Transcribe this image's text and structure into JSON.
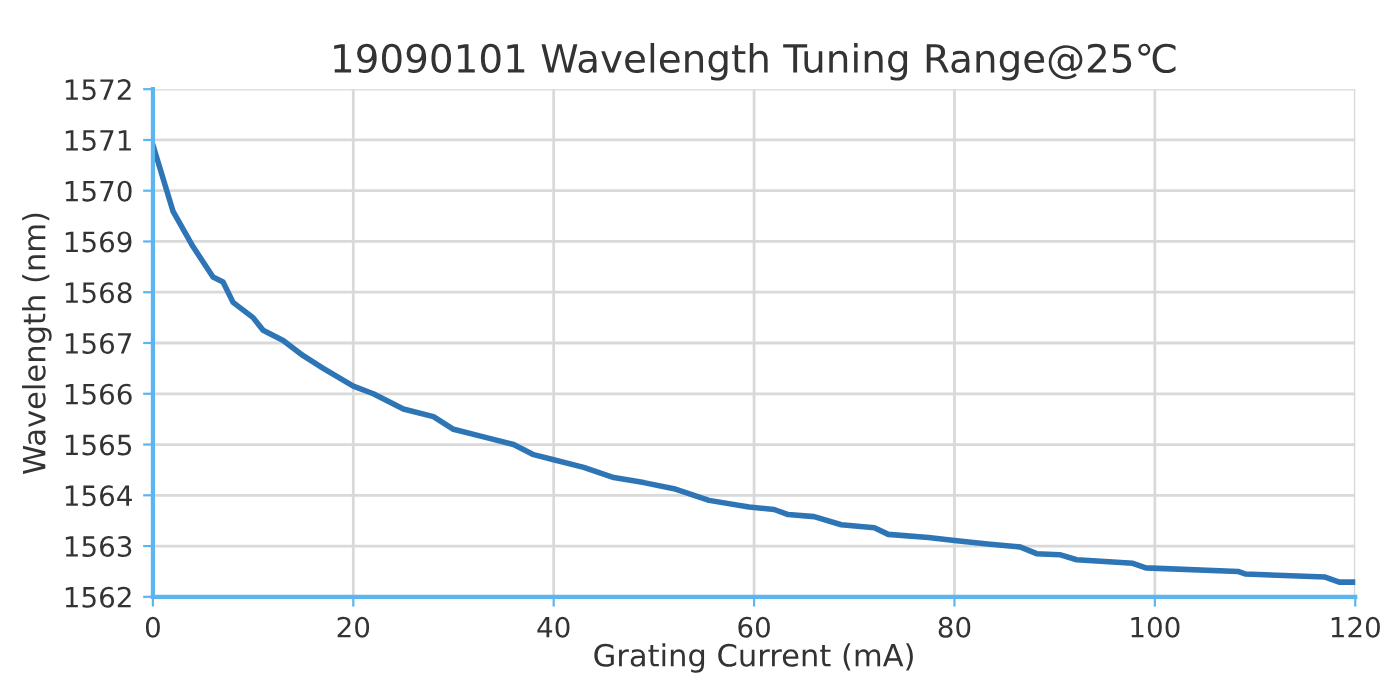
{
  "chart_data": {
    "type": "line",
    "title": "19090101 Wavelength Tuning Range@25℃",
    "xlabel": "Grating Current (mA)",
    "ylabel": "Wavelength (nm)",
    "series": [
      {
        "color": "#2e75b6",
        "x": [
          0,
          2,
          4,
          6,
          7,
          8,
          10,
          11,
          13,
          15,
          17,
          20,
          22,
          25,
          28,
          30,
          33,
          36,
          38,
          40,
          43,
          46,
          49,
          52,
          55.5,
          59.5,
          62,
          63.4,
          66,
          68.7,
          72,
          73.4,
          77.4,
          80,
          83.3,
          86.6,
          88.2,
          90.5,
          92.2,
          97.8,
          99.1,
          108.3,
          109,
          117,
          118.4,
          120
        ],
        "values": [
          1570.9,
          1569.6,
          1568.9,
          1568.3,
          1568.2,
          1567.8,
          1567.5,
          1567.25,
          1567.05,
          1566.75,
          1566.5,
          1566.15,
          1566.0,
          1565.7,
          1565.55,
          1565.3,
          1565.15,
          1565.0,
          1564.8,
          1564.7,
          1564.55,
          1564.35,
          1564.25,
          1564.13,
          1563.9,
          1563.77,
          1563.72,
          1563.62,
          1563.58,
          1563.42,
          1563.36,
          1563.23,
          1563.17,
          1563.11,
          1563.04,
          1562.98,
          1562.85,
          1562.83,
          1562.73,
          1562.66,
          1562.57,
          1562.5,
          1562.45,
          1562.39,
          1562.29,
          1562.29
        ]
      }
    ],
    "xlim": [
      0,
      120
    ],
    "xticks": [
      0,
      20,
      40,
      60,
      80,
      100,
      120
    ],
    "ylim": [
      1562,
      1572
    ],
    "yticks": [
      1562,
      1563,
      1564,
      1565,
      1566,
      1567,
      1568,
      1569,
      1570,
      1571,
      1572
    ],
    "grid": true,
    "marker": "none",
    "line_style": "solid"
  }
}
